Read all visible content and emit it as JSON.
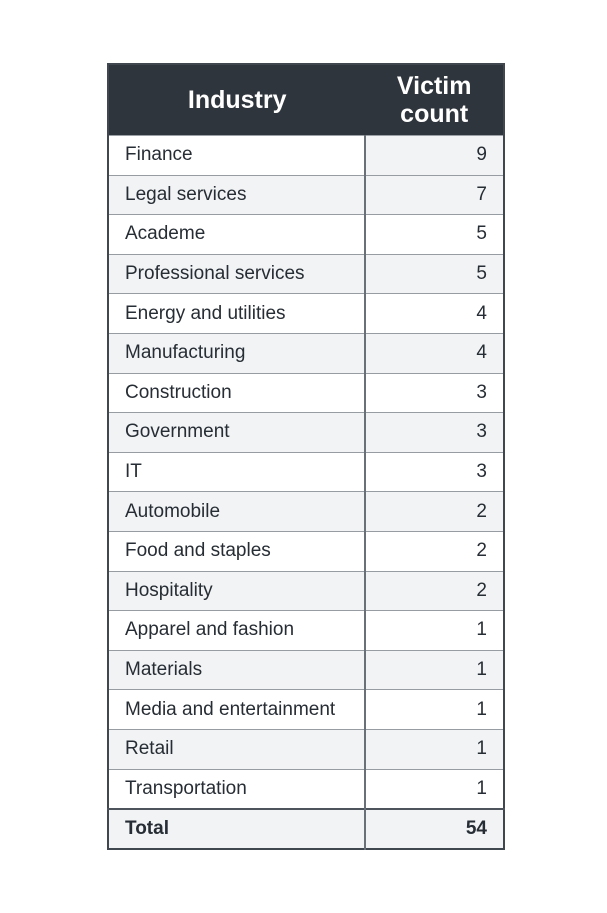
{
  "chart_data": {
    "type": "table",
    "columns": [
      "Industry",
      "Victim count"
    ],
    "rows": [
      [
        "Finance",
        9
      ],
      [
        "Legal services",
        7
      ],
      [
        "Academe",
        5
      ],
      [
        "Professional services",
        5
      ],
      [
        "Energy and utilities",
        4
      ],
      [
        "Manufacturing",
        4
      ],
      [
        "Construction",
        3
      ],
      [
        "Government",
        3
      ],
      [
        "IT",
        3
      ],
      [
        "Automobile",
        2
      ],
      [
        "Food and staples",
        2
      ],
      [
        "Hospitality",
        2
      ],
      [
        "Apparel and fashion",
        1
      ],
      [
        "Materials",
        1
      ],
      [
        "Media and entertainment",
        1
      ],
      [
        "Retail",
        1
      ],
      [
        "Transportation",
        1
      ]
    ],
    "total": [
      "Total",
      54
    ],
    "layout_hints": {
      "zebra_striping": true,
      "first_row_count_cell_shaded": true,
      "total_row_bold": true
    }
  },
  "colors": {
    "header_bg": "#2f353c",
    "header_text": "#ffffff",
    "row_bg": "#ffffff",
    "zebra_bg": "#f1f3f5",
    "body_text": "#272d34",
    "grid_line": "#969ca2",
    "outer_border": "#40474e",
    "column_divider": "#6a7077"
  }
}
